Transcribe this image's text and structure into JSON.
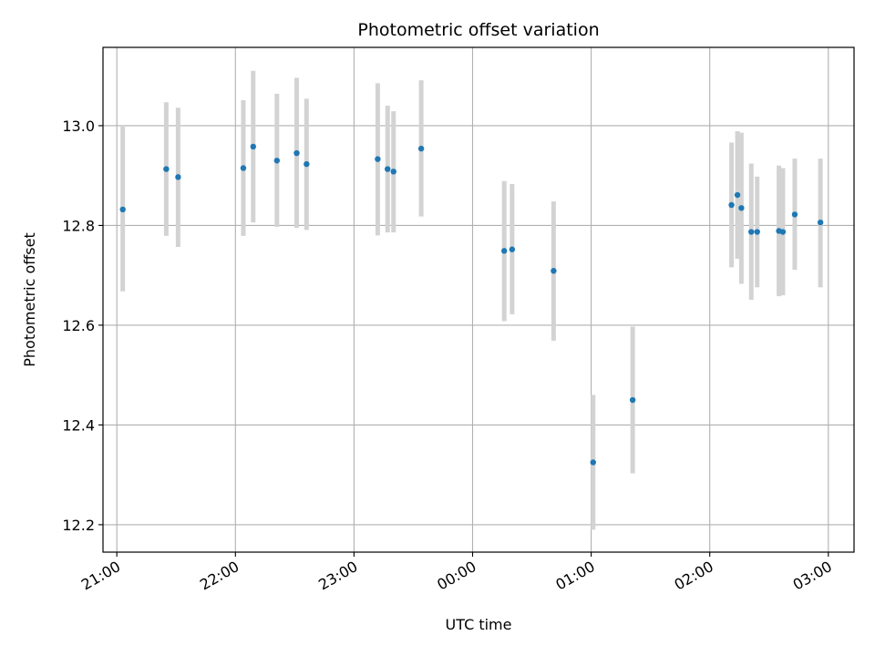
{
  "chart_data": {
    "type": "scatter",
    "title": "Photometric offset variation",
    "xlabel": "UTC time",
    "ylabel": "Photometric offset",
    "x_axis": "time",
    "x_range": [
      "20:53",
      "03:13"
    ],
    "ylim": [
      12.145,
      13.157
    ],
    "grid": true,
    "x_ticks": [
      "21:00",
      "22:00",
      "23:00",
      "00:00",
      "01:00",
      "02:00",
      "03:00"
    ],
    "x_tick_times": [
      "21:00",
      "22:00",
      "23:00",
      "00:00",
      "01:00",
      "02:00",
      "03:00"
    ],
    "y_ticks": [
      "12.2",
      "12.4",
      "12.6",
      "12.8",
      "13.0"
    ],
    "y_tick_values": [
      12.2,
      12.4,
      12.6,
      12.8,
      13.0
    ],
    "point_color": "#1f77b4",
    "errorbar_color": "#d3d3d3",
    "points": [
      {
        "t": "21:03",
        "y": 12.832,
        "lo": 12.668,
        "hi": 12.998
      },
      {
        "t": "21:25",
        "y": 12.913,
        "lo": 12.779,
        "hi": 13.047
      },
      {
        "t": "21:31",
        "y": 12.897,
        "lo": 12.757,
        "hi": 13.036
      },
      {
        "t": "22:04",
        "y": 12.915,
        "lo": 12.779,
        "hi": 13.051
      },
      {
        "t": "22:09",
        "y": 12.958,
        "lo": 12.806,
        "hi": 13.11
      },
      {
        "t": "22:21",
        "y": 12.93,
        "lo": 12.797,
        "hi": 13.064
      },
      {
        "t": "22:31",
        "y": 12.945,
        "lo": 12.795,
        "hi": 13.096
      },
      {
        "t": "22:36",
        "y": 12.923,
        "lo": 12.791,
        "hi": 13.054
      },
      {
        "t": "23:12",
        "y": 12.933,
        "lo": 12.78,
        "hi": 13.085
      },
      {
        "t": "23:17",
        "y": 12.913,
        "lo": 12.786,
        "hi": 13.04
      },
      {
        "t": "23:20",
        "y": 12.908,
        "lo": 12.786,
        "hi": 13.029
      },
      {
        "t": "23:34",
        "y": 12.954,
        "lo": 12.818,
        "hi": 13.091
      },
      {
        "t": "00:16",
        "y": 12.749,
        "lo": 12.608,
        "hi": 12.889
      },
      {
        "t": "00:20",
        "y": 12.752,
        "lo": 12.622,
        "hi": 12.883
      },
      {
        "t": "00:41",
        "y": 12.709,
        "lo": 12.569,
        "hi": 12.848
      },
      {
        "t": "01:01",
        "y": 12.325,
        "lo": 12.19,
        "hi": 12.46
      },
      {
        "t": "01:21",
        "y": 12.45,
        "lo": 12.303,
        "hi": 12.597
      },
      {
        "t": "02:11",
        "y": 12.841,
        "lo": 12.716,
        "hi": 12.966
      },
      {
        "t": "02:14",
        "y": 12.861,
        "lo": 12.733,
        "hi": 12.989
      },
      {
        "t": "02:16",
        "y": 12.835,
        "lo": 12.683,
        "hi": 12.986
      },
      {
        "t": "02:21",
        "y": 12.787,
        "lo": 12.651,
        "hi": 12.924
      },
      {
        "t": "02:24",
        "y": 12.787,
        "lo": 12.676,
        "hi": 12.898
      },
      {
        "t": "02:35",
        "y": 12.789,
        "lo": 12.658,
        "hi": 12.92
      },
      {
        "t": "02:37",
        "y": 12.787,
        "lo": 12.66,
        "hi": 12.915
      },
      {
        "t": "02:43",
        "y": 12.822,
        "lo": 12.711,
        "hi": 12.934
      },
      {
        "t": "02:56",
        "y": 12.806,
        "lo": 12.676,
        "hi": 12.934
      }
    ]
  }
}
